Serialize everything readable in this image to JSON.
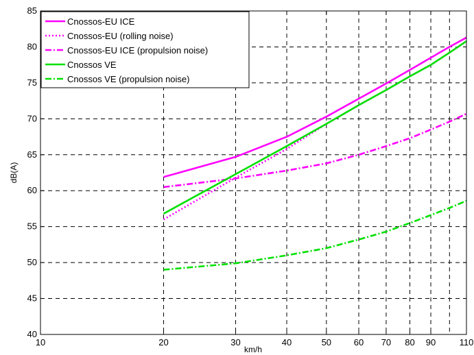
{
  "chart_data": {
    "type": "line",
    "xlabel": "km/h",
    "ylabel": "dB(A)",
    "xscale": "log",
    "xlim": [
      10,
      110
    ],
    "ylim": [
      40,
      85
    ],
    "grid": true,
    "legend_position": "top-left",
    "x_ticks": [
      10,
      20,
      30,
      40,
      50,
      60,
      70,
      80,
      90,
      110
    ],
    "x_tick_labels": [
      "10",
      "20",
      "30",
      "40",
      "50",
      "60",
      "70",
      "80",
      "90",
      "110"
    ],
    "x_grid": [
      20,
      30,
      40,
      50,
      60,
      70,
      80,
      90,
      100,
      110
    ],
    "y_ticks": [
      40,
      45,
      50,
      55,
      60,
      65,
      70,
      75,
      80,
      85
    ],
    "y_tick_labels": [
      "40",
      "45",
      "50",
      "55",
      "60",
      "65",
      "70",
      "75",
      "80",
      "85"
    ],
    "x": [
      20,
      30,
      40,
      50,
      60,
      70,
      80,
      90,
      100,
      110
    ],
    "series": [
      {
        "name": "Cnossos-EU ICE",
        "color": "#ff00ff",
        "dash": "solid",
        "values": [
          61.9,
          64.7,
          67.5,
          70.3,
          72.8,
          74.9,
          76.8,
          78.5,
          80.0,
          81.3
        ]
      },
      {
        "name": "Cnossos-EU (rolling noise)",
        "color": "#ff00ff",
        "dash": "dotted",
        "values": [
          56.0,
          61.8,
          65.8,
          69.3,
          71.9,
          74.0,
          75.9,
          77.5,
          79.2,
          80.8
        ]
      },
      {
        "name": "Cnossos-EU ICE (propulsion noise)",
        "color": "#ff00ff",
        "dash": "dashdot",
        "values": [
          60.5,
          61.7,
          62.8,
          63.8,
          65.0,
          66.2,
          67.3,
          68.5,
          69.6,
          70.7
        ]
      },
      {
        "name": "Cnossos VE",
        "color": "#00e000",
        "dash": "solid",
        "values": [
          56.8,
          62.3,
          66.2,
          69.3,
          71.9,
          74.0,
          75.9,
          77.5,
          79.2,
          80.8
        ]
      },
      {
        "name": "Cnossos VE (propulsion noise)",
        "color": "#00e000",
        "dash": "dashdot",
        "values": [
          49.0,
          49.9,
          51.0,
          52.0,
          53.2,
          54.3,
          55.5,
          56.6,
          57.6,
          58.6
        ]
      }
    ]
  }
}
